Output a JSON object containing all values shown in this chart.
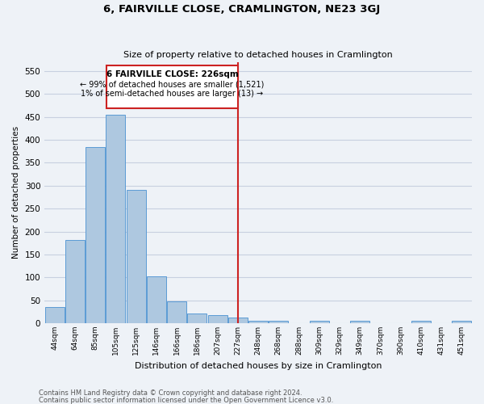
{
  "title": "6, FAIRVILLE CLOSE, CRAMLINGTON, NE23 3GJ",
  "subtitle": "Size of property relative to detached houses in Cramlington",
  "xlabel": "Distribution of detached houses by size in Cramlington",
  "ylabel": "Number of detached properties",
  "footnote1": "Contains HM Land Registry data © Crown copyright and database right 2024.",
  "footnote2": "Contains public sector information licensed under the Open Government Licence v3.0.",
  "categories": [
    "44sqm",
    "64sqm",
    "85sqm",
    "105sqm",
    "125sqm",
    "146sqm",
    "166sqm",
    "186sqm",
    "207sqm",
    "227sqm",
    "248sqm",
    "268sqm",
    "288sqm",
    "309sqm",
    "329sqm",
    "349sqm",
    "370sqm",
    "390sqm",
    "410sqm",
    "431sqm",
    "451sqm"
  ],
  "values": [
    35,
    182,
    385,
    455,
    290,
    103,
    48,
    22,
    17,
    13,
    5,
    5,
    0,
    5,
    0,
    5,
    0,
    0,
    5,
    0,
    5
  ],
  "bar_color": "#aec8e0",
  "bar_edge_color": "#5b9bd5",
  "grid_color": "#c8d0e0",
  "background_color": "#eef2f7",
  "vline_x_index": 9,
  "vline_color": "#cc2222",
  "annotation_title": "6 FAIRVILLE CLOSE: 226sqm",
  "annotation_line1": "← 99% of detached houses are smaller (1,521)",
  "annotation_line2": "1% of semi-detached houses are larger (13) →",
  "annotation_box_color": "#cc2222",
  "ylim": [
    0,
    570
  ],
  "yticks": [
    0,
    50,
    100,
    150,
    200,
    250,
    300,
    350,
    400,
    450,
    500,
    550
  ]
}
